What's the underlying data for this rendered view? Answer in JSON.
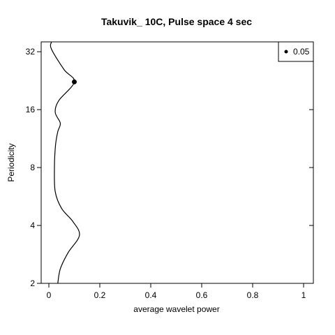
{
  "chart_data": {
    "type": "line",
    "title": "Takuvik_ 10C, Pulse space 4 sec",
    "xlabel": "average wavelet power",
    "ylabel": "Periodicity",
    "xlim": [
      0,
      1
    ],
    "ylim": [
      2,
      36
    ],
    "y_scale": "log2",
    "x_ticks": [
      0,
      0.2,
      0.4,
      0.6,
      0.8,
      1
    ],
    "x_tick_labels": [
      "0",
      "0.2",
      "0.4",
      "0.6",
      "0.8",
      "1"
    ],
    "y_ticks": [
      2,
      4,
      8,
      16,
      32
    ],
    "y_tick_labels": [
      "2",
      "4",
      "8",
      "16",
      "32"
    ],
    "legend": {
      "position": "top-right",
      "entries": [
        {
          "label": "0.05",
          "marker": "dot"
        }
      ]
    },
    "series": [
      {
        "color": "#000000",
        "points": [
          {
            "x": 0.035,
            "y": 2.0
          },
          {
            "x": 0.045,
            "y": 2.38
          },
          {
            "x": 0.075,
            "y": 2.88
          },
          {
            "x": 0.12,
            "y": 3.55
          },
          {
            "x": 0.095,
            "y": 4.18
          },
          {
            "x": 0.05,
            "y": 4.9
          },
          {
            "x": 0.025,
            "y": 6.0
          },
          {
            "x": 0.022,
            "y": 8.0
          },
          {
            "x": 0.026,
            "y": 10.4
          },
          {
            "x": 0.035,
            "y": 12.3
          },
          {
            "x": 0.045,
            "y": 13.6
          },
          {
            "x": 0.025,
            "y": 15.5
          },
          {
            "x": 0.04,
            "y": 17.9
          },
          {
            "x": 0.1,
            "y": 22.3
          },
          {
            "x": 0.06,
            "y": 25.8
          },
          {
            "x": 0.01,
            "y": 33.0
          },
          {
            "x": 0.01,
            "y": 36.0
          }
        ]
      }
    ],
    "significant_points": [
      {
        "x": 0.1,
        "y": 22.3
      }
    ]
  }
}
